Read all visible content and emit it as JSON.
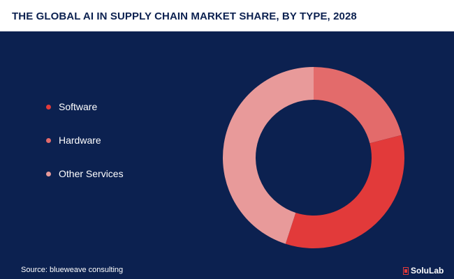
{
  "title": "THE GLOBAL AI IN SUPPLY CHAIN MARKET SHARE, BY TYPE, 2028",
  "colors": {
    "background": "#0c2150",
    "title_band": "#ffffff",
    "text": "#ffffff"
  },
  "chart_data": {
    "type": "pie",
    "title": "THE GLOBAL AI IN SUPPLY CHAIN MARKET SHARE, BY TYPE, 2028",
    "legend_position": "left",
    "series": [
      {
        "name": "Software",
        "value": 34,
        "color": "#e23a3a"
      },
      {
        "name": "Hardware",
        "value": 21,
        "color": "#e36b6b"
      },
      {
        "name": "Other Services",
        "value": 45,
        "color": "#e89a9a"
      }
    ]
  },
  "footer": {
    "source": "Source: blueweave consulting",
    "brand": "SoluLab"
  }
}
